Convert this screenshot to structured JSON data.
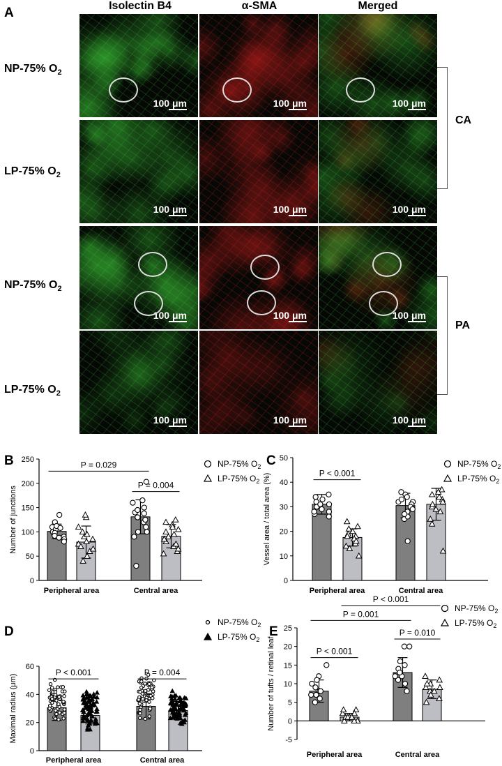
{
  "panelA": {
    "letter": "A",
    "columns": [
      "Isolectin B4",
      "α-SMA",
      "Merged"
    ],
    "rows": [
      {
        "label": "NP-75% O",
        "sub": "2"
      },
      {
        "label": "LP-75% O",
        "sub": "2"
      },
      {
        "label": "NP-75% O",
        "sub": "2"
      },
      {
        "label": "LP-75% O",
        "sub": "2"
      }
    ],
    "scale_label": "100 μm",
    "brackets": [
      "CA",
      "PA"
    ],
    "colors": {
      "green": "#3fd23a",
      "red": "#e02020",
      "dark": "#050805"
    }
  },
  "legend": {
    "np": "NP-75% O",
    "lp": "LP-75% O",
    "sub": "2"
  },
  "chart_data": [
    {
      "id": "B",
      "letter": "B",
      "type": "bar",
      "categories": [
        "Peripheral area",
        "Central area"
      ],
      "ylabel": "Number of junctions",
      "ylim": [
        0,
        250
      ],
      "yticks": [
        0,
        50,
        100,
        150,
        200,
        250
      ],
      "series": [
        {
          "name": "NP-75% O2",
          "values": [
            101,
            131
          ],
          "err": [
            15,
            35
          ],
          "points": [
            [
              95,
              110,
              90,
              120,
              135,
              100,
              85,
              105,
              98,
              112,
              80,
              108,
              92,
              88
            ],
            [
              120,
              160,
              100,
              150,
              203,
              140,
              30,
              130,
              110,
              165,
              125,
              100,
              145,
              138,
              90
            ]
          ]
        },
        {
          "name": "LP-75% O2",
          "values": [
            79,
            91
          ],
          "err": [
            33,
            24
          ],
          "points": [
            [
              60,
              130,
              80,
              100,
              50,
              75,
              90,
              40,
              110,
              135,
              70,
              65,
              85,
              95
            ],
            [
              80,
              120,
              60,
              100,
              70,
              115,
              90,
              125,
              55,
              85,
              105,
              95,
              75,
              110,
              65
            ]
          ]
        }
      ],
      "annotations": [
        {
          "text": "P = 0.029",
          "span": [
            "NP-0",
            "NP-1"
          ],
          "y": 225
        },
        {
          "text": "P = 0.004",
          "span": [
            "NP-1",
            "LP-1"
          ],
          "y": 183
        }
      ]
    },
    {
      "id": "C",
      "letter": "C",
      "type": "bar",
      "categories": [
        "Peripheral area",
        "Central area"
      ],
      "ylabel": "Vessel area / total area (%)",
      "ylim": [
        0,
        50
      ],
      "yticks": [
        0,
        10,
        20,
        30,
        40,
        50
      ],
      "series": [
        {
          "name": "NP-75% O2",
          "values": [
            31,
            30.5
          ],
          "err": [
            4,
            5
          ],
          "points": [
            [
              28,
              34,
              30,
              35,
              26,
              31,
              32,
              29,
              33,
              27,
              30,
              31,
              28
            ],
            [
              25,
              32,
              35,
              16,
              28,
              31,
              36,
              30,
              34,
              26,
              29,
              32,
              33,
              27
            ]
          ]
        },
        {
          "name": "LP-75% O2",
          "values": [
            17.5,
            31
          ],
          "err": [
            3.5,
            6.5
          ],
          "points": [
            [
              15,
              20,
              18,
              10,
              22,
              24,
              14,
              17,
              19,
              16,
              21,
              13,
              18
            ],
            [
              23,
              37,
              33,
              12,
              30,
              35,
              28,
              32,
              34,
              25,
              31,
              36,
              29
            ]
          ]
        }
      ],
      "annotations": [
        {
          "text": "P < 0.001",
          "span": [
            "NP-0",
            "LP-0"
          ],
          "y": 41
        }
      ]
    },
    {
      "id": "D",
      "letter": "D",
      "type": "bar",
      "categories": [
        "Peripheral area",
        "Central area"
      ],
      "ylabel": "Maximal radius (μm)",
      "ylim": [
        0,
        60
      ],
      "yticks": [
        0,
        20,
        40,
        60
      ],
      "series": [
        {
          "name": "NP-75% O2",
          "values": [
            30.5,
            31.5
          ],
          "err": [
            9,
            9
          ],
          "marker": "small-circle",
          "n": 60,
          "range": [
            [
              18,
              55
            ],
            [
              16,
              60
            ]
          ]
        },
        {
          "name": "LP-75% O2",
          "values": [
            25,
            28.5
          ],
          "err": [
            6,
            6.5
          ],
          "marker": "filled-triangle",
          "n": 80,
          "range": [
            [
              12,
              48
            ],
            [
              14,
              46
            ]
          ]
        }
      ],
      "annotations": [
        {
          "text": "P < 0.001",
          "span": [
            "NP-0",
            "LP-0"
          ],
          "y": 51
        },
        {
          "text": "P = 0.004",
          "span": [
            "NP-1",
            "LP-1"
          ],
          "y": 51
        }
      ]
    },
    {
      "id": "E",
      "letter": "E",
      "type": "bar",
      "categories": [
        "Peripheral area",
        "Central area"
      ],
      "ylabel": "Number of tufts / retinal leaf",
      "ylim": [
        -5,
        25
      ],
      "yticks": [
        -5,
        0,
        5,
        10,
        15,
        20,
        25
      ],
      "series": [
        {
          "name": "NP-75% O2",
          "values": [
            8,
            13
          ],
          "err": [
            3,
            4
          ],
          "points": [
            [
              15,
              12,
              10,
              8,
              6,
              7,
              9,
              5,
              11,
              8,
              7
            ],
            [
              20,
              20,
              14,
              12,
              10,
              16,
              13,
              11,
              8,
              15,
              12
            ]
          ]
        },
        {
          "name": "LP-75% O2",
          "values": [
            1,
            8.5
          ],
          "err": [
            1,
            2.5
          ],
          "points": [
            [
              3,
              2,
              1,
              0,
              1,
              2,
              0,
              1,
              3,
              0,
              1
            ],
            [
              12,
              11,
              10,
              8,
              6,
              9,
              7,
              5,
              10,
              8,
              9
            ]
          ]
        }
      ],
      "annotations": [
        {
          "text": "P < 0.001",
          "span": [
            "NP-0",
            "LP-0"
          ],
          "y": 17
        },
        {
          "text": "P = 0.010",
          "span": [
            "NP-1",
            "LP-1"
          ],
          "y": 22
        },
        {
          "text": "P = 0.001",
          "span": [
            "NP-0",
            "NP-1"
          ],
          "y": 27
        },
        {
          "text": "P < 0.001",
          "span": [
            "LP-0",
            "LP-1"
          ],
          "y": 31
        }
      ]
    }
  ]
}
